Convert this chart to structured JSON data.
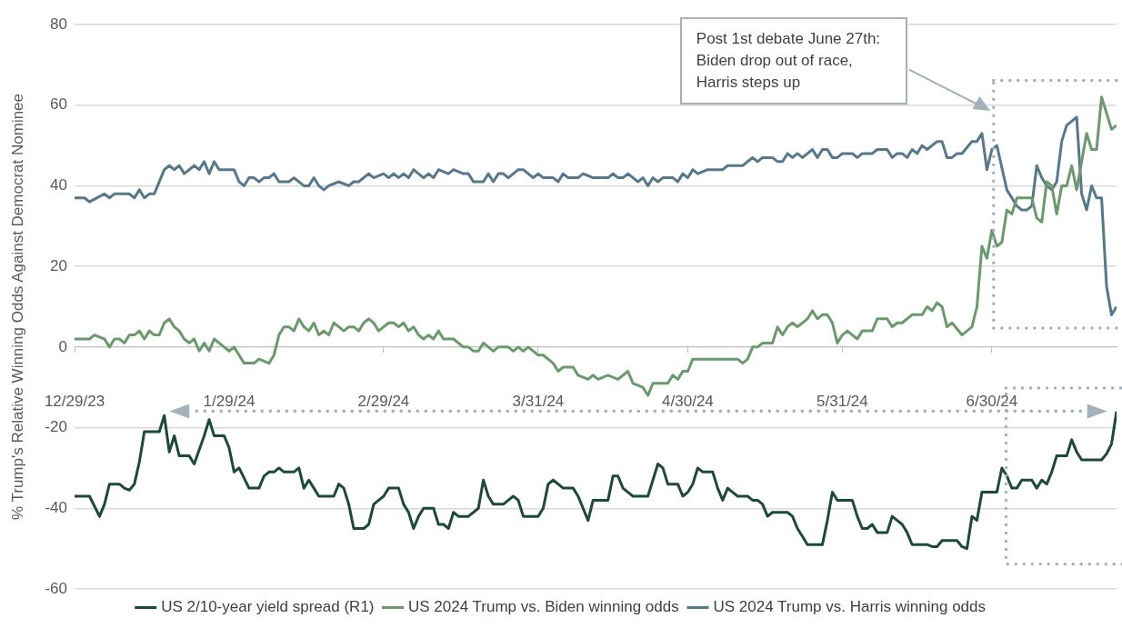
{
  "chart_data": {
    "type": "line",
    "ylabel": "% Trump's Relative Winning Odds Against Democrat Nominee",
    "xlim": [
      "2023-12-29",
      "2024-07-25"
    ],
    "xticks": [
      {
        "value": "2023-12-29",
        "label": "12/29/23"
      },
      {
        "value": "2024-01-29",
        "label": "1/29/24"
      },
      {
        "value": "2024-02-29",
        "label": "2/29/24"
      },
      {
        "value": "2024-03-31",
        "label": "3/31/24"
      },
      {
        "value": "2024-04-30",
        "label": "4/30/24"
      },
      {
        "value": "2024-05-31",
        "label": "5/31/24"
      },
      {
        "value": "2024-06-30",
        "label": "6/30/24"
      }
    ],
    "ylim": [
      -60,
      80
    ],
    "yticks": [
      -60,
      -40,
      -20,
      0,
      20,
      40,
      60,
      80
    ],
    "grid": "y",
    "legend": "bottom",
    "annotations": [
      "Post 1st debate June 27th: Biden drop out of race, Harris steps up"
    ],
    "series": [
      {
        "name": "US 2/10-year yield spread (R1)",
        "color": "#1b4a35",
        "x": [
          "2023-12-29",
          "2024-01-01",
          "2024-01-03",
          "2024-01-04",
          "2024-01-05",
          "2024-01-07",
          "2024-01-08",
          "2024-01-09",
          "2024-01-10",
          "2024-01-11",
          "2024-01-12",
          "2024-01-15",
          "2024-01-16",
          "2024-01-17",
          "2024-01-18",
          "2024-01-19",
          "2024-01-21",
          "2024-01-22",
          "2024-01-24",
          "2024-01-25",
          "2024-01-26",
          "2024-01-28",
          "2024-01-29",
          "2024-01-30",
          "2024-01-31",
          "2024-02-02",
          "2024-02-04",
          "2024-02-05",
          "2024-02-06",
          "2024-02-07",
          "2024-02-08",
          "2024-02-09",
          "2024-02-11",
          "2024-02-12",
          "2024-02-13",
          "2024-02-14",
          "2024-02-15",
          "2024-02-16",
          "2024-02-19",
          "2024-02-20",
          "2024-02-21",
          "2024-02-22",
          "2024-02-23",
          "2024-02-25",
          "2024-02-26",
          "2024-02-27",
          "2024-02-28",
          "2024-02-29",
          "2024-03-01",
          "2024-03-03",
          "2024-03-04",
          "2024-03-05",
          "2024-03-06",
          "2024-03-07",
          "2024-03-08",
          "2024-03-10",
          "2024-03-11",
          "2024-03-12",
          "2024-03-13",
          "2024-03-14",
          "2024-03-15",
          "2024-03-17",
          "2024-03-19",
          "2024-03-20",
          "2024-03-21",
          "2024-03-22",
          "2024-03-24",
          "2024-03-25",
          "2024-03-26",
          "2024-03-27",
          "2024-03-28",
          "2024-03-31",
          "2024-04-01",
          "2024-04-02",
          "2024-04-03",
          "2024-04-05",
          "2024-04-07",
          "2024-04-08",
          "2024-04-10",
          "2024-04-11",
          "2024-04-14",
          "2024-04-15",
          "2024-04-16",
          "2024-04-17",
          "2024-04-18",
          "2024-04-19",
          "2024-04-21",
          "2024-04-22",
          "2024-04-23",
          "2024-04-24",
          "2024-04-25",
          "2024-04-26",
          "2024-04-28",
          "2024-04-29",
          "2024-04-30",
          "2024-05-01",
          "2024-05-02",
          "2024-05-03",
          "2024-05-05",
          "2024-05-06",
          "2024-05-07",
          "2024-05-08",
          "2024-05-09",
          "2024-05-10",
          "2024-05-12",
          "2024-05-13",
          "2024-05-14",
          "2024-05-15",
          "2024-05-16",
          "2024-05-17",
          "2024-05-20",
          "2024-05-21",
          "2024-05-22",
          "2024-05-23",
          "2024-05-24",
          "2024-05-27",
          "2024-05-28",
          "2024-05-29",
          "2024-05-30",
          "2024-05-31",
          "2024-06-02",
          "2024-06-03",
          "2024-06-04",
          "2024-06-05",
          "2024-06-06",
          "2024-06-07",
          "2024-06-09",
          "2024-06-10",
          "2024-06-11",
          "2024-06-12",
          "2024-06-13",
          "2024-06-14",
          "2024-06-17",
          "2024-06-18",
          "2024-06-19",
          "2024-06-20",
          "2024-06-22",
          "2024-06-23",
          "2024-06-24",
          "2024-06-25",
          "2024-06-26",
          "2024-06-27",
          "2024-06-28",
          "2024-07-01",
          "2024-07-02",
          "2024-07-03",
          "2024-07-04",
          "2024-07-05",
          "2024-07-06",
          "2024-07-08",
          "2024-07-09",
          "2024-07-10",
          "2024-07-11",
          "2024-07-12",
          "2024-07-13",
          "2024-07-15",
          "2024-07-16",
          "2024-07-17",
          "2024-07-18",
          "2024-07-22",
          "2024-07-23",
          "2024-07-24",
          "2024-07-25"
        ],
        "values": [
          -37,
          -37,
          -42,
          -39,
          -34,
          -34,
          -35,
          -35.5,
          -34,
          -28.5,
          -21,
          -21,
          -17,
          -26,
          -22,
          -27,
          -27,
          -29,
          -22,
          -18,
          -22,
          -22,
          -25,
          -31,
          -30,
          -35,
          -35,
          -32,
          -31,
          -31,
          -30,
          -31,
          -31,
          -30,
          -35,
          -33,
          -35,
          -37,
          -37,
          -34,
          -35,
          -39,
          -45,
          -45,
          -44,
          -39,
          -38,
          -37,
          -35,
          -35,
          -39,
          -41,
          -45,
          -42,
          -40,
          -40,
          -44,
          -44,
          -45,
          -41,
          -42,
          -42,
          -40,
          -33,
          -37,
          -39,
          -39,
          -38,
          -37,
          -38,
          -42,
          -42,
          -40,
          -34,
          -33,
          -35,
          -35,
          -37,
          -43,
          -38,
          -38,
          -32,
          -32,
          -35,
          -36,
          -37,
          -37,
          -37,
          -33,
          -29,
          -30,
          -34,
          -34,
          -37,
          -36,
          -34,
          -30,
          -31,
          -31,
          -35,
          -38,
          -35,
          -36,
          -37,
          -37,
          -38,
          -38,
          -39,
          -42,
          -41,
          -41,
          -42,
          -45,
          -47,
          -49,
          -49,
          -43,
          -36,
          -38,
          -38,
          -38,
          -42,
          -45,
          -45,
          -44,
          -46,
          -46,
          -42,
          -43,
          -44,
          -46,
          -49,
          -49,
          -49.5,
          -49.5,
          -48,
          -48,
          -48,
          -49.5,
          -50,
          -42,
          -43,
          -36,
          -36,
          -30,
          -32,
          -35,
          -35,
          -33,
          -33,
          -35,
          -33,
          -34,
          -31,
          -27,
          -27,
          -23,
          -26,
          -28,
          -28,
          -26.5,
          -24,
          -16
        ]
      },
      {
        "name": "US 2024 Trump vs. Biden winning odds",
        "color": "#6a9a6c",
        "x": [
          "2023-12-29",
          "2024-01-01",
          "2024-01-02",
          "2024-01-04",
          "2024-01-05",
          "2024-01-06",
          "2024-01-07",
          "2024-01-08",
          "2024-01-09",
          "2024-01-10",
          "2024-01-11",
          "2024-01-12",
          "2024-01-13",
          "2024-01-14",
          "2024-01-15",
          "2024-01-16",
          "2024-01-17",
          "2024-01-18",
          "2024-01-19",
          "2024-01-20",
          "2024-01-21",
          "2024-01-22",
          "2024-01-23",
          "2024-01-24",
          "2024-01-25",
          "2024-01-26",
          "2024-01-27",
          "2024-01-29",
          "2024-01-30",
          "2024-01-31",
          "2024-02-01",
          "2024-02-03",
          "2024-02-04",
          "2024-02-06",
          "2024-02-07",
          "2024-02-08",
          "2024-02-09",
          "2024-02-10",
          "2024-02-11",
          "2024-02-12",
          "2024-02-13",
          "2024-02-14",
          "2024-02-15",
          "2024-02-16",
          "2024-02-17",
          "2024-02-18",
          "2024-02-19",
          "2024-02-20",
          "2024-02-21",
          "2024-02-22",
          "2024-02-23",
          "2024-02-24",
          "2024-02-25",
          "2024-02-26",
          "2024-02-27",
          "2024-02-28",
          "2024-02-29",
          "2024-03-01",
          "2024-03-02",
          "2024-03-03",
          "2024-03-04",
          "2024-03-05",
          "2024-03-06",
          "2024-03-07",
          "2024-03-08",
          "2024-03-09",
          "2024-03-10",
          "2024-03-11",
          "2024-03-12",
          "2024-03-14",
          "2024-03-16",
          "2024-03-17",
          "2024-03-18",
          "2024-03-19",
          "2024-03-20",
          "2024-03-22",
          "2024-03-23",
          "2024-03-25",
          "2024-03-26",
          "2024-03-27",
          "2024-03-28",
          "2024-03-29",
          "2024-03-31",
          "2024-04-01",
          "2024-04-03",
          "2024-04-04",
          "2024-04-05",
          "2024-04-07",
          "2024-04-08",
          "2024-04-10",
          "2024-04-11",
          "2024-04-12",
          "2024-04-14",
          "2024-04-16",
          "2024-04-18",
          "2024-04-19",
          "2024-04-21",
          "2024-04-22",
          "2024-04-23",
          "2024-04-26",
          "2024-04-27",
          "2024-04-28",
          "2024-04-29",
          "2024-04-30",
          "2024-05-01",
          "2024-05-02",
          "2024-05-10",
          "2024-05-11",
          "2024-05-12",
          "2024-05-13",
          "2024-05-14",
          "2024-05-15",
          "2024-05-17",
          "2024-05-18",
          "2024-05-19",
          "2024-05-20",
          "2024-05-21",
          "2024-05-22",
          "2024-05-24",
          "2024-05-25",
          "2024-05-26",
          "2024-05-27",
          "2024-05-28",
          "2024-05-29",
          "2024-05-30",
          "2024-05-31",
          "2024-06-01",
          "2024-06-03",
          "2024-06-04",
          "2024-06-06",
          "2024-06-07",
          "2024-06-09",
          "2024-06-10",
          "2024-06-11",
          "2024-06-12",
          "2024-06-14",
          "2024-06-16",
          "2024-06-17",
          "2024-06-18",
          "2024-06-19",
          "2024-06-20",
          "2024-06-21",
          "2024-06-22",
          "2024-06-24",
          "2024-06-26",
          "2024-06-27",
          "2024-06-28",
          "2024-06-29",
          "2024-06-30",
          "2024-07-01",
          "2024-07-02",
          "2024-07-03",
          "2024-07-04",
          "2024-07-05",
          "2024-07-07",
          "2024-07-08",
          "2024-07-09",
          "2024-07-10",
          "2024-07-11",
          "2024-07-12",
          "2024-07-13",
          "2024-07-14",
          "2024-07-15",
          "2024-07-16",
          "2024-07-17",
          "2024-07-18",
          "2024-07-19",
          "2024-07-20",
          "2024-07-21",
          "2024-07-22",
          "2024-07-24",
          "2024-07-25"
        ],
        "values": [
          2,
          2,
          3,
          2,
          0,
          2,
          2,
          1,
          3,
          3,
          4,
          2,
          4,
          3,
          3,
          6,
          7,
          5,
          4,
          2,
          1,
          2,
          -1,
          1,
          -1,
          2,
          1,
          -1,
          0,
          -2,
          -4,
          -4,
          -3,
          -4,
          -2,
          3,
          5,
          5,
          4,
          7,
          5,
          4,
          6,
          3,
          4,
          3,
          6,
          5,
          4,
          5,
          5,
          4,
          6,
          7,
          6,
          4,
          5,
          6,
          6,
          5,
          6,
          4,
          5,
          3,
          2,
          3,
          2,
          4,
          2,
          2,
          0,
          0,
          -1,
          -1,
          1,
          -1,
          0,
          0,
          -1,
          0,
          -1,
          0,
          -2,
          -2,
          -4,
          -6,
          -5,
          -5,
          -7,
          -8,
          -7,
          -8,
          -7,
          -8,
          -6,
          -9,
          -10,
          -12,
          -9,
          -9,
          -7,
          -8,
          -6,
          -6,
          -3,
          -3,
          -3,
          -4,
          -3,
          0,
          0,
          1,
          1,
          5,
          3,
          5,
          6,
          5,
          7,
          9,
          7,
          8,
          8,
          6,
          1,
          3,
          4,
          2,
          4,
          4,
          7,
          7,
          5,
          6,
          6,
          8,
          8,
          10,
          9,
          11,
          10,
          5,
          6,
          3,
          5,
          10,
          25,
          22,
          29,
          25,
          26,
          34,
          33,
          37,
          37,
          37,
          32,
          31,
          41,
          40,
          33,
          40,
          40,
          45,
          39,
          46,
          53,
          49,
          49,
          62,
          54,
          55
        ]
      },
      {
        "name": "US 2024 Trump vs. Harris winning odds",
        "color": "#56788a",
        "x": [
          "2023-12-29",
          "2023-12-31",
          "2024-01-01",
          "2024-01-04",
          "2024-01-05",
          "2024-01-06",
          "2024-01-09",
          "2024-01-10",
          "2024-01-11",
          "2024-01-12",
          "2024-01-13",
          "2024-01-14",
          "2024-01-16",
          "2024-01-17",
          "2024-01-18",
          "2024-01-19",
          "2024-01-20",
          "2024-01-22",
          "2024-01-23",
          "2024-01-24",
          "2024-01-25",
          "2024-01-26",
          "2024-01-27",
          "2024-01-30",
          "2024-01-31",
          "2024-02-01",
          "2024-02-02",
          "2024-02-03",
          "2024-02-04",
          "2024-02-05",
          "2024-02-06",
          "2024-02-07",
          "2024-02-08",
          "2024-02-10",
          "2024-02-11",
          "2024-02-13",
          "2024-02-14",
          "2024-02-15",
          "2024-02-16",
          "2024-02-17",
          "2024-02-18",
          "2024-02-20",
          "2024-02-22",
          "2024-02-23",
          "2024-02-24",
          "2024-02-26",
          "2024-02-27",
          "2024-02-29",
          "2024-03-01",
          "2024-03-02",
          "2024-03-03",
          "2024-03-04",
          "2024-03-05",
          "2024-03-06",
          "2024-03-08",
          "2024-03-09",
          "2024-03-10",
          "2024-03-11",
          "2024-03-13",
          "2024-03-14",
          "2024-03-16",
          "2024-03-17",
          "2024-03-18",
          "2024-03-20",
          "2024-03-21",
          "2024-03-22",
          "2024-03-23",
          "2024-03-24",
          "2024-03-25",
          "2024-03-27",
          "2024-03-28",
          "2024-03-30",
          "2024-03-31",
          "2024-04-01",
          "2024-04-03",
          "2024-04-04",
          "2024-04-05",
          "2024-04-06",
          "2024-04-08",
          "2024-04-09",
          "2024-04-11",
          "2024-04-14",
          "2024-04-15",
          "2024-04-16",
          "2024-04-17",
          "2024-04-18",
          "2024-04-20",
          "2024-04-21",
          "2024-04-22",
          "2024-04-23",
          "2024-04-24",
          "2024-04-25",
          "2024-04-27",
          "2024-04-28",
          "2024-04-29",
          "2024-04-30",
          "2024-05-01",
          "2024-05-02",
          "2024-05-04",
          "2024-05-07",
          "2024-05-08",
          "2024-05-11",
          "2024-05-13",
          "2024-05-14",
          "2024-05-15",
          "2024-05-17",
          "2024-05-18",
          "2024-05-19",
          "2024-05-20",
          "2024-05-21",
          "2024-05-22",
          "2024-05-23",
          "2024-05-25",
          "2024-05-26",
          "2024-05-27",
          "2024-05-28",
          "2024-05-29",
          "2024-05-30",
          "2024-05-31",
          "2024-06-02",
          "2024-06-03",
          "2024-06-04",
          "2024-06-06",
          "2024-06-07",
          "2024-06-09",
          "2024-06-10",
          "2024-06-11",
          "2024-06-12",
          "2024-06-13",
          "2024-06-14",
          "2024-06-15",
          "2024-06-16",
          "2024-06-17",
          "2024-06-19",
          "2024-06-20",
          "2024-06-21",
          "2024-06-22",
          "2024-06-23",
          "2024-06-24",
          "2024-06-26",
          "2024-06-27",
          "2024-06-28",
          "2024-06-29",
          "2024-06-30",
          "2024-07-01",
          "2024-07-03",
          "2024-07-04",
          "2024-07-05",
          "2024-07-06",
          "2024-07-07",
          "2024-07-08",
          "2024-07-09",
          "2024-07-10",
          "2024-07-11",
          "2024-07-12",
          "2024-07-13",
          "2024-07-14",
          "2024-07-15",
          "2024-07-16",
          "2024-07-17",
          "2024-07-18",
          "2024-07-19",
          "2024-07-20",
          "2024-07-21",
          "2024-07-22",
          "2024-07-23",
          "2024-07-24",
          "2024-07-25"
        ],
        "values": [
          37,
          37,
          36,
          38,
          37,
          38,
          38,
          37,
          39,
          37,
          38,
          38,
          44,
          45,
          44,
          45,
          43,
          45,
          44,
          46,
          43,
          46,
          44,
          44,
          41,
          40,
          42,
          42,
          41,
          42,
          42,
          43,
          41,
          41,
          42,
          40,
          40,
          42,
          40,
          39,
          40,
          41,
          40,
          41,
          41,
          43,
          42,
          43,
          42,
          43,
          42,
          43,
          42,
          44,
          42,
          43,
          42,
          44,
          43,
          44,
          43,
          43,
          41,
          41,
          43,
          41,
          43,
          43,
          42,
          44,
          44,
          42,
          43,
          42,
          42,
          41,
          43,
          42,
          42,
          43,
          42,
          42,
          43,
          42,
          42,
          43,
          41,
          42,
          40,
          42,
          41,
          42,
          42,
          41,
          43,
          42,
          44,
          43,
          44,
          44,
          45,
          45,
          47,
          46,
          47,
          47,
          46,
          46,
          48,
          47,
          48,
          47,
          49,
          47,
          49,
          49,
          47,
          47,
          48,
          48,
          47,
          48,
          48,
          49,
          49,
          47,
          48,
          48,
          47,
          49,
          48,
          50,
          49,
          51,
          51,
          47,
          47,
          48,
          48,
          51,
          51,
          53,
          44,
          49,
          50,
          39,
          37,
          35,
          34,
          34,
          35,
          45,
          42,
          40,
          39,
          41,
          51,
          55,
          56,
          57,
          38,
          34,
          40,
          37,
          37,
          15,
          8,
          10
        ]
      }
    ]
  }
}
